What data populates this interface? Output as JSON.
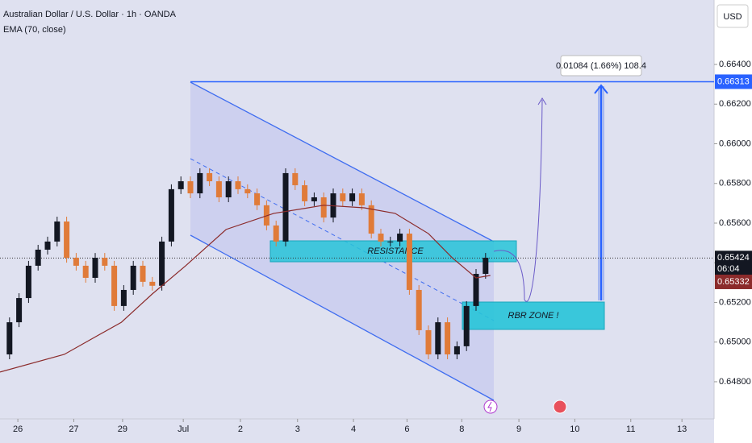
{
  "chart_data": {
    "type": "candlestick",
    "title": "Australian Dollar / U.S. Dollar · 1h · OANDA",
    "indicator": "EMA (70, close)",
    "currency": "USD",
    "up_color": "#131722",
    "down_color": "#e07b39",
    "x": [
      0,
      4,
      8,
      12,
      16,
      20,
      24,
      28,
      32,
      36,
      40,
      44,
      48,
      52,
      56,
      60,
      64,
      68,
      72,
      76,
      80,
      84,
      88,
      92,
      96,
      100,
      104,
      108,
      112,
      116,
      120,
      124,
      128,
      132,
      136,
      140,
      144,
      148,
      152,
      156,
      160,
      164,
      168,
      172,
      176,
      180,
      184,
      188,
      192,
      196,
      200,
      204
    ],
    "values": [
      0.64938,
      0.651,
      0.65222,
      0.65385,
      0.65466,
      0.65507,
      0.65608,
      0.65425,
      0.65385,
      0.65324,
      0.65425,
      0.65385,
      0.65182,
      0.65263,
      0.65385,
      0.65304,
      0.65284,
      0.65507,
      0.65771,
      0.65811,
      0.6575,
      0.65852,
      0.65811,
      0.6573,
      0.65811,
      0.65771,
      0.6575,
      0.6569,
      0.65588,
      0.65507,
      0.65852,
      0.65791,
      0.6571,
      0.6573,
      0.65628,
      0.6575,
      0.6571,
      0.6575,
      0.6569,
      0.65547,
      0.65507,
      0.65507,
      0.65547,
      0.65263,
      0.6506,
      0.64938,
      0.651,
      0.64938,
      0.64979,
      0.65182,
      0.65344,
      0.65425
    ],
    "ema": {
      "color": "#8b2b2b",
      "x": [
        0,
        27,
        51,
        64,
        78,
        95,
        115,
        136,
        153,
        166,
        180,
        190,
        200,
        206
      ],
      "values": [
        0.64849,
        0.64938,
        0.651,
        0.65243,
        0.65385,
        0.65568,
        0.65649,
        0.6569,
        0.65677,
        0.65649,
        0.65547,
        0.65425,
        0.65324,
        0.65336
      ]
    },
    "xlim": [
      0,
      300
    ],
    "xticks": [
      {
        "value": 7.5,
        "label": "26"
      },
      {
        "value": 31,
        "label": "27"
      },
      {
        "value": 51.5,
        "label": "29"
      },
      {
        "value": 77,
        "label": "Jul"
      },
      {
        "value": 101,
        "label": "2"
      },
      {
        "value": 125,
        "label": "3"
      },
      {
        "value": 148.5,
        "label": "4"
      },
      {
        "value": 171,
        "label": "6"
      },
      {
        "value": 194,
        "label": "8"
      },
      {
        "value": 218,
        "label": "9"
      },
      {
        "value": 241.5,
        "label": "10"
      },
      {
        "value": 265,
        "label": "11"
      },
      {
        "value": 286.5,
        "label": "13"
      }
    ],
    "ylim": [
      0.64613,
      0.66725
    ],
    "yticks": [
      {
        "value": 0.648,
        "label": "0.64800"
      },
      {
        "value": 0.65,
        "label": "0.65000"
      },
      {
        "value": 0.652,
        "label": "0.65200"
      },
      {
        "value": 0.654,
        "label": "0.65400"
      },
      {
        "value": 0.656,
        "label": "0.65600"
      },
      {
        "value": 0.658,
        "label": "0.65800"
      },
      {
        "value": 0.66,
        "label": "0.66000"
      },
      {
        "value": 0.662,
        "label": "0.66200"
      },
      {
        "value": 0.664,
        "label": "0.66400"
      }
    ],
    "target_price": 0.66313,
    "current_price": 0.65424,
    "countdown": "06:04",
    "ema_last": 0.65332,
    "measure_label": "0.01084 (1.66%) 108.4",
    "resistance_label": "RESISTANCE",
    "zone_label": "RBR ZONE !"
  }
}
